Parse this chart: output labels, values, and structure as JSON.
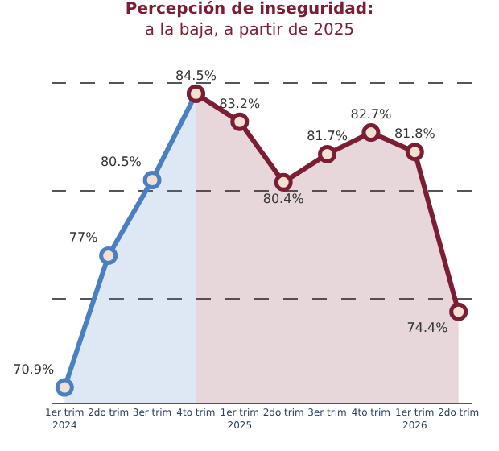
{
  "chart_data": {
    "type": "area",
    "title": "Percepción de inseguridad: a la baja, a partir de 2025",
    "categories": [
      "1er trim\n2024",
      "2do trim",
      "3er trim",
      "4to trim",
      "1er trim\n2025",
      "2do trim",
      "3er trim",
      "4to trim",
      "1er trim\n2026",
      "2do trim"
    ],
    "series": [
      {
        "color": "#4a7fc1",
        "values": [
          70.9,
          77,
          80.5,
          84.5,
          null,
          null,
          null,
          null,
          null,
          null
        ],
        "value_labels": [
          "70.9%",
          "77%",
          "80.5%",
          "84.5%",
          null,
          null,
          null,
          null,
          null,
          null
        ]
      },
      {
        "color": "#7b1e34",
        "values": [
          null,
          null,
          null,
          84.5,
          83.2,
          80.4,
          81.7,
          82.7,
          81.8,
          74.4
        ],
        "value_labels": [
          null,
          null,
          null,
          null,
          "83.2%",
          "80.4%",
          "81.7%",
          "82.7%",
          "81.8%",
          "74.4%"
        ]
      }
    ],
    "ref_lines": [
      {
        "axis": "y",
        "value": 75,
        "line_style": "dashed",
        "color": "#555555"
      },
      {
        "axis": "y",
        "value": 80,
        "line_style": "dashed",
        "color": "#555555"
      },
      {
        "axis": "y",
        "value": 85,
        "line_style": "dashed",
        "color": "#555555"
      }
    ],
    "tick_labels": "x",
    "marker": "circle",
    "line_style": "solid"
  }
}
